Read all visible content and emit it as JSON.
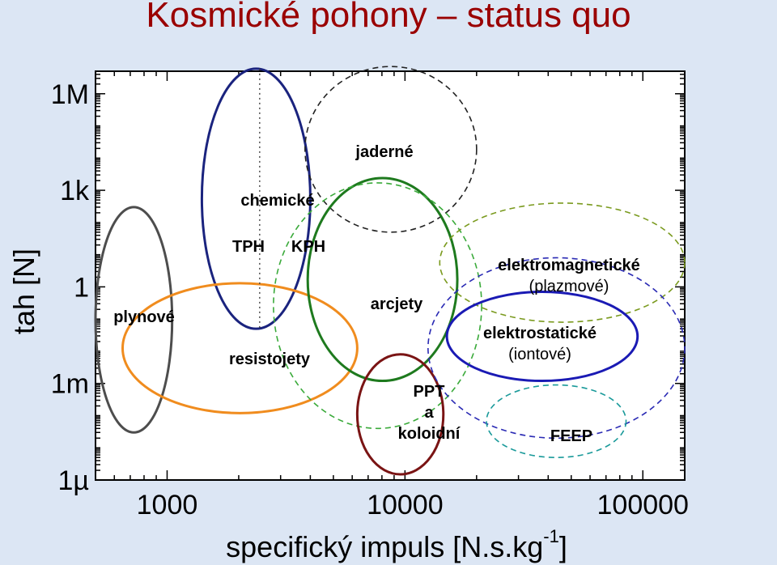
{
  "title": "Kosmické pohony – status quo",
  "chart_data": {
    "type": "scatter",
    "title": "Kosmické pohony – status quo",
    "xlabel": "specifický impuls [N.s.kg",
    "xlabel_sup": "-1",
    "xlabel_end": "]",
    "ylabel": "tah [N]",
    "x_scale": "log",
    "y_scale": "log",
    "xlim": [
      500,
      150000
    ],
    "ylim": [
      1e-06,
      5000000
    ],
    "x_ticks": [
      {
        "value": 1000,
        "label": "1000"
      },
      {
        "value": 10000,
        "label": "10000"
      },
      {
        "value": 100000,
        "label": "100000"
      }
    ],
    "y_ticks": [
      {
        "value": 1e-06,
        "label": "1µ"
      },
      {
        "value": 0.001,
        "label": "1m"
      },
      {
        "value": 1,
        "label": "1"
      },
      {
        "value": 1000,
        "label": "1k"
      },
      {
        "value": 1000000,
        "label": "1M"
      }
    ],
    "regions": [
      {
        "name": "plynové",
        "label_lines": [
          "plynové"
        ],
        "bold": true,
        "isp_range": [
          500,
          1050
        ],
        "thrust_range": [
          3e-05,
          300
        ],
        "color": "#4d4d4d",
        "style": "solid"
      },
      {
        "name": "chemické",
        "label_lines": [
          "chemické"
        ],
        "bold": true,
        "isp_range": [
          1400,
          4000
        ],
        "thrust_range": [
          0.05,
          6000000
        ],
        "color": "#1a237e",
        "style": "solid"
      },
      {
        "name": "resistojety",
        "label_lines": [
          "resistojety"
        ],
        "bold": true,
        "isp_range": [
          650,
          6300
        ],
        "thrust_range": [
          0.00012,
          1.3
        ],
        "color": "#f08c1e",
        "style": "solid"
      },
      {
        "name": "jaderné",
        "label_lines": [
          "jaderné"
        ],
        "bold": true,
        "isp_range": [
          3800,
          20000
        ],
        "thrust_range": [
          50,
          7000000
        ],
        "color": "#222222",
        "style": "dashed"
      },
      {
        "name": "arcjety",
        "label_lines": [
          "arcjety"
        ],
        "bold": true,
        "isp_range": [
          3900,
          16600
        ],
        "thrust_range": [
          0.0012,
          2400
        ],
        "color": "#1e7a1e",
        "style": "solid"
      },
      {
        "name": "",
        "label_lines": [],
        "isp_range": [
          2800,
          21000
        ],
        "thrust_range": [
          4e-05,
          1700
        ],
        "color": "#3aaa3a",
        "style": "dashed"
      },
      {
        "name": "PPT a koloidní",
        "label_lines": [
          "PPT",
          "a",
          "koloidní"
        ],
        "bold": true,
        "isp_range": [
          6300,
          14500
        ],
        "thrust_range": [
          1.5e-06,
          0.008
        ],
        "color": "#7a1414",
        "style": "solid"
      },
      {
        "name": "elektromagnetické (plazmové)",
        "label_lines": [
          "elektromagnetické",
          "(plazmové)"
        ],
        "bold": true,
        "second_line_normal": true,
        "isp_range": [
          14000,
          150000
        ],
        "thrust_range": [
          0.08,
          400
        ],
        "color": "#7a9a1e",
        "style": "dashed"
      },
      {
        "name": "elektrostatické (iontové)",
        "label_lines": [
          "elektrostatické",
          "(iontové)"
        ],
        "bold": true,
        "second_line_normal": true,
        "isp_range": [
          15000,
          95000
        ],
        "thrust_range": [
          0.0012,
          0.7
        ],
        "color": "#1a1ab4",
        "style": "solid"
      },
      {
        "name": "",
        "label_lines": [],
        "isp_range": [
          12500,
          150000
        ],
        "thrust_range": [
          2e-05,
          8
        ],
        "color": "#2a2ab4",
        "style": "dashed"
      },
      {
        "name": "FEEP",
        "label_lines": [
          "FEEP"
        ],
        "bold": true,
        "isp_range": [
          22000,
          85000
        ],
        "thrust_range": [
          5e-06,
          0.0009
        ],
        "color": "#1a9a9a",
        "style": "dashed"
      }
    ],
    "annotations": [
      {
        "text": "TPH",
        "isp": 1600,
        "thrust": 80
      },
      {
        "text": "KPH",
        "isp": 3300,
        "thrust": 80
      }
    ],
    "reference_line": {
      "isp": 2450,
      "thrust_range": [
        0.05,
        6000000
      ],
      "style": "dotted"
    }
  }
}
